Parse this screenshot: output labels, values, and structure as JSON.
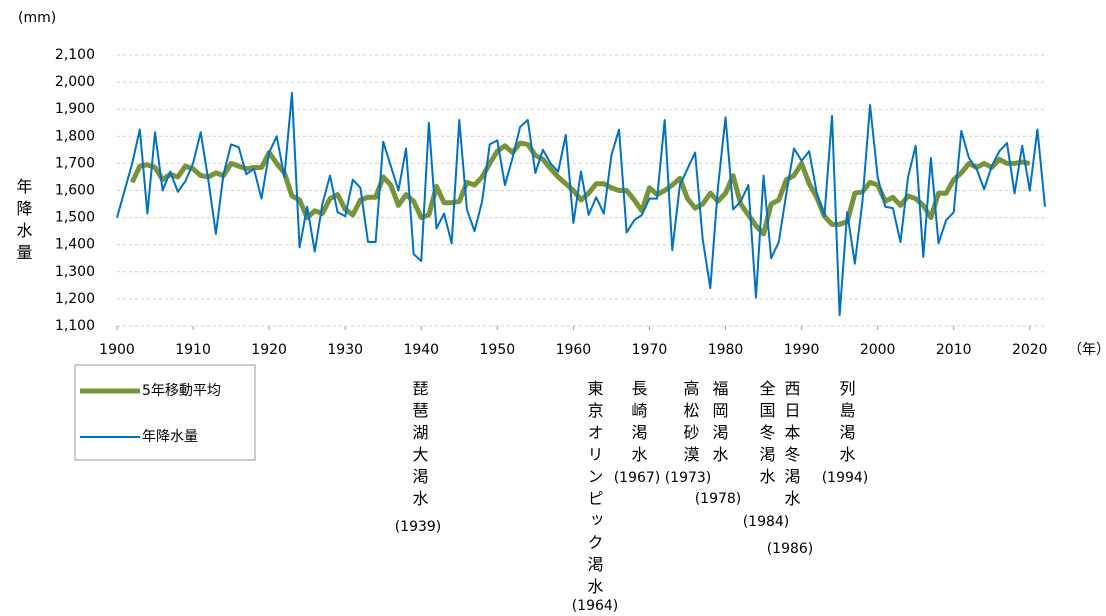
{
  "chart_data": {
    "type": "line",
    "y_unit": "(mm)",
    "y_label": "年降水量",
    "x_unit": "（年）",
    "x": [
      1900,
      1901,
      1902,
      1903,
      1904,
      1905,
      1906,
      1907,
      1908,
      1909,
      1910,
      1911,
      1912,
      1913,
      1914,
      1915,
      1916,
      1917,
      1918,
      1919,
      1920,
      1921,
      1922,
      1923,
      1924,
      1925,
      1926,
      1927,
      1928,
      1929,
      1930,
      1931,
      1932,
      1933,
      1934,
      1935,
      1936,
      1937,
      1938,
      1939,
      1940,
      1941,
      1942,
      1943,
      1944,
      1945,
      1946,
      1947,
      1948,
      1949,
      1950,
      1951,
      1952,
      1953,
      1954,
      1955,
      1956,
      1957,
      1958,
      1959,
      1960,
      1961,
      1962,
      1963,
      1964,
      1965,
      1966,
      1967,
      1968,
      1969,
      1970,
      1971,
      1972,
      1973,
      1974,
      1975,
      1976,
      1977,
      1978,
      1979,
      1980,
      1981,
      1982,
      1983,
      1984,
      1985,
      1986,
      1987,
      1988,
      1989,
      1990,
      1991,
      1992,
      1993,
      1994,
      1995,
      1996,
      1997,
      1998,
      1999,
      2000,
      2001,
      2002,
      2003,
      2004,
      2005,
      2006,
      2007,
      2008,
      2009,
      2010,
      2011,
      2012,
      2013,
      2014,
      2015,
      2016,
      2017,
      2018,
      2019,
      2020,
      2021,
      2022
    ],
    "series": [
      {
        "name": "5年移動平均",
        "color": "#77933c",
        "values": [
          null,
          null,
          1630,
          1690,
          1695,
          1685,
          1640,
          1660,
          1650,
          1690,
          1680,
          1655,
          1650,
          1665,
          1655,
          1700,
          1690,
          1680,
          1685,
          1685,
          1740,
          1700,
          1665,
          1580,
          1565,
          1500,
          1525,
          1515,
          1570,
          1585,
          1530,
          1510,
          1565,
          1575,
          1575,
          1650,
          1620,
          1545,
          1585,
          1560,
          1500,
          1510,
          1615,
          1555,
          1555,
          1560,
          1630,
          1620,
          1650,
          1700,
          1745,
          1765,
          1740,
          1775,
          1770,
          1730,
          1715,
          1680,
          1650,
          1625,
          1600,
          1565,
          1590,
          1625,
          1625,
          1610,
          1600,
          1600,
          1565,
          1525,
          1610,
          1585,
          1600,
          1620,
          1645,
          1570,
          1535,
          1550,
          1590,
          1560,
          1590,
          1655,
          1550,
          1510,
          1470,
          1440,
          1550,
          1565,
          1640,
          1655,
          1700,
          1625,
          1575,
          1505,
          1475,
          1475,
          1485,
          1590,
          1595,
          1630,
          1620,
          1560,
          1575,
          1545,
          1580,
          1570,
          1545,
          1500,
          1590,
          1590,
          1640,
          1665,
          1700,
          1685,
          1700,
          1685,
          1715,
          1700,
          1700,
          1705,
          1700,
          null,
          null
        ]
      },
      {
        "name": "年降水量",
        "color": "#0070c0",
        "values": [
          1500,
          1600,
          1700,
          1825,
          1515,
          1815,
          1600,
          1670,
          1595,
          1635,
          1700,
          1815,
          1640,
          1440,
          1660,
          1770,
          1760,
          1660,
          1680,
          1570,
          1740,
          1800,
          1650,
          1960,
          1390,
          1540,
          1375,
          1550,
          1655,
          1520,
          1505,
          1640,
          1610,
          1410,
          1410,
          1780,
          1690,
          1600,
          1755,
          1365,
          1340,
          1850,
          1460,
          1515,
          1405,
          1860,
          1530,
          1450,
          1560,
          1770,
          1785,
          1620,
          1720,
          1835,
          1860,
          1665,
          1750,
          1700,
          1670,
          1805,
          1480,
          1670,
          1510,
          1575,
          1515,
          1730,
          1825,
          1445,
          1490,
          1510,
          1570,
          1570,
          1860,
          1380,
          1620,
          1680,
          1740,
          1420,
          1240,
          1610,
          1870,
          1530,
          1560,
          1620,
          1205,
          1655,
          1350,
          1410,
          1590,
          1755,
          1710,
          1745,
          1590,
          1505,
          1875,
          1140,
          1520,
          1330,
          1560,
          1915,
          1650,
          1540,
          1535,
          1410,
          1650,
          1765,
          1355,
          1720,
          1405,
          1490,
          1520,
          1820,
          1720,
          1680,
          1605,
          1690,
          1745,
          1775,
          1590,
          1765,
          1600,
          1825,
          1540
        ]
      }
    ],
    "xlim": [
      1900,
      2022
    ],
    "xticks": [
      1900,
      1910,
      1920,
      1930,
      1940,
      1950,
      1960,
      1970,
      1980,
      1990,
      2000,
      2010,
      2020
    ],
    "ylim": [
      1100,
      2100
    ],
    "yticks": [
      {
        "value": 1100,
        "label": "1,100"
      },
      {
        "value": 1200,
        "label": "1,200"
      },
      {
        "value": 1300,
        "label": "1,300"
      },
      {
        "value": 1400,
        "label": "1,400"
      },
      {
        "value": 1500,
        "label": "1,500"
      },
      {
        "value": 1600,
        "label": "1,600"
      },
      {
        "value": 1700,
        "label": "1,700"
      },
      {
        "value": 1800,
        "label": "1,800"
      },
      {
        "value": 1900,
        "label": "1,900"
      },
      {
        "value": 2000,
        "label": "2,000"
      },
      {
        "value": 2100,
        "label": "2,100"
      }
    ],
    "grid": true,
    "annotations": [
      {
        "label": "琵琶湖大渇水",
        "year": "(1939)"
      },
      {
        "label": "東京オリンピック渇水",
        "year": "(1964)"
      },
      {
        "label": "長崎渇水",
        "year": "(1967)"
      },
      {
        "label": "高松砂漠",
        "year": "(1973)"
      },
      {
        "label": "福岡渇水",
        "year": "(1978)"
      },
      {
        "label": "全国冬渇水",
        "year": "(1984)"
      },
      {
        "label": "西日本冬渇水",
        "year": "(1986)"
      },
      {
        "label": "列島渇水",
        "year": "(1994)"
      }
    ]
  }
}
